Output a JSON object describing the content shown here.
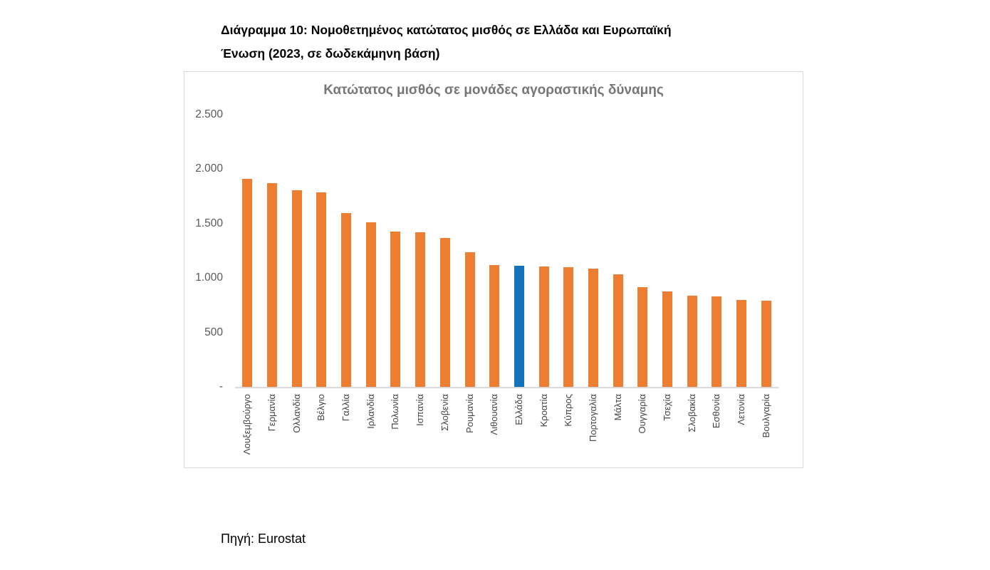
{
  "document": {
    "title_lines": [
      "Διάγραμμα 10: Νομοθετημένος κατώτατος μισθός σε Ελλάδα και Ευρωπαϊκή",
      "Ένωση  (2023, σε δωδεκάμηνη βάση)"
    ],
    "source": "Πηγή: Eurostat"
  },
  "chart_data": {
    "type": "bar",
    "title": "Κατώτατος μισθός σε μονάδες αγοραστικής δύναμης",
    "categories": [
      "Λουξεμβούργο",
      "Γερμανία",
      "Ολλανδία",
      "Βέλγιο",
      "Γαλλία",
      "Ιρλανδία",
      "Πολωνία",
      "Ισπανία",
      "Σλοβενία",
      "Ρουμανία",
      "Λιθουανία",
      "Ελλάδα",
      "Κροατία",
      "Κύπρος",
      "Πορτογαλία",
      "Μάλτα",
      "Ουγγαρία",
      "Τσεχία",
      "Σλοβακία",
      "Εσθονία",
      "Λετονία",
      "Βουλγαρία"
    ],
    "values": [
      1910,
      1870,
      1805,
      1785,
      1600,
      1510,
      1425,
      1420,
      1370,
      1240,
      1120,
      1110,
      1105,
      1098,
      1088,
      1035,
      915,
      875,
      838,
      830,
      797,
      794
    ],
    "highlight_category": "Ελλάδα",
    "colors": {
      "bar_default": "#ED7D31",
      "bar_highlight": "#1372BA",
      "chart_title": "#767676",
      "axis_line": "#d9d9d9",
      "tick_label": "#595959"
    },
    "ylim": [
      0,
      2500
    ],
    "yticks": [
      {
        "value": 2500,
        "label": "2.500"
      },
      {
        "value": 2000,
        "label": "2.000"
      },
      {
        "value": 1500,
        "label": "1.500"
      },
      {
        "value": 1000,
        "label": "1.000"
      },
      {
        "value": 500,
        "label": "500"
      },
      {
        "value": 0,
        "label": "-"
      }
    ],
    "grid": false,
    "legend": "none"
  }
}
